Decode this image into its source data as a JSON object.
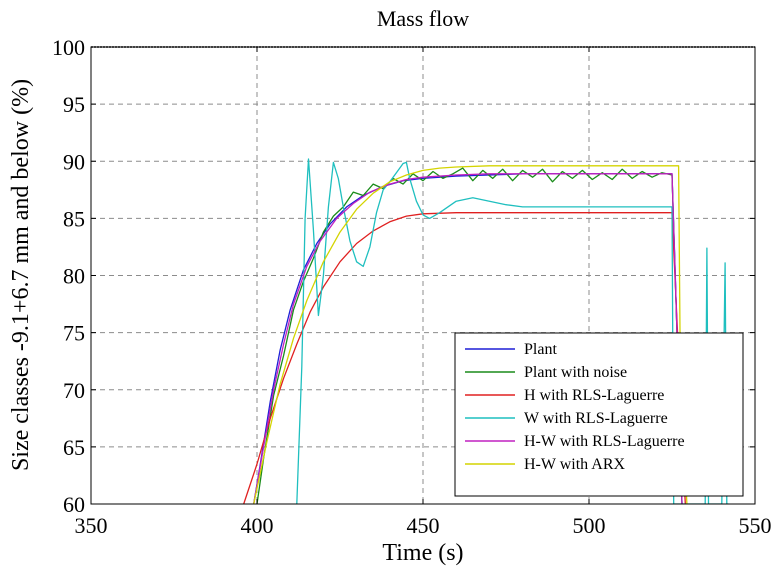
{
  "chart_data": {
    "type": "line",
    "title": "Mass flow",
    "xlabel": "Time (s)",
    "ylabel": "Size classes -9.1+6.7 mm and below (%)",
    "xlim": [
      350,
      550
    ],
    "ylim": [
      60,
      100
    ],
    "xticks": [
      350,
      400,
      450,
      500,
      550
    ],
    "yticks": [
      60,
      65,
      70,
      75,
      80,
      85,
      90,
      95,
      100
    ],
    "grid": true,
    "legend_position": "bottom-right",
    "series": [
      {
        "name": "Plant",
        "color": "#1f1fd6",
        "x": [
          399,
          401,
          404,
          407,
          410,
          414,
          418,
          422,
          427,
          432,
          438,
          444,
          450,
          460,
          470,
          480,
          490,
          500,
          510,
          520,
          525,
          526,
          528
        ],
        "y": [
          60,
          63.5,
          69,
          73.5,
          77,
          80.5,
          82.8,
          84.5,
          86.0,
          87.0,
          87.8,
          88.3,
          88.5,
          88.7,
          88.8,
          88.9,
          88.9,
          88.9,
          88.9,
          88.9,
          88.9,
          80,
          60
        ]
      },
      {
        "name": "Plant with noise",
        "color": "#1a8c1a",
        "x": [
          400,
          402,
          405,
          408,
          411,
          414,
          417,
          420,
          423,
          426,
          429,
          432,
          435,
          438,
          441,
          444,
          447,
          450,
          453,
          456,
          459,
          462,
          465,
          468,
          471,
          474,
          477,
          480,
          483,
          486,
          489,
          492,
          495,
          498,
          501,
          504,
          507,
          510,
          513,
          516,
          519,
          522,
          525,
          526.5,
          528
        ],
        "y": [
          60,
          64,
          69.5,
          73,
          77,
          79.5,
          81.5,
          83.8,
          85.2,
          86.0,
          87.3,
          87.0,
          88.0,
          87.6,
          88.5,
          88.0,
          88.9,
          88.3,
          89.1,
          88.5,
          88.9,
          89.4,
          88.3,
          89.2,
          88.5,
          89.3,
          88.3,
          89.2,
          88.6,
          89.3,
          88.2,
          89.1,
          88.5,
          89.2,
          88.4,
          89.0,
          88.4,
          89.3,
          88.5,
          89.1,
          88.6,
          89.0,
          88.8,
          75,
          60
        ]
      },
      {
        "name": "H with RLS-Laguerre",
        "color": "#e02020",
        "x": [
          396,
          400,
          404,
          408,
          412,
          416,
          420,
          425,
          430,
          435,
          440,
          445,
          450,
          460,
          470,
          480,
          490,
          500,
          510,
          520,
          525,
          527,
          529
        ],
        "y": [
          60,
          63.5,
          67.5,
          71,
          74,
          76.8,
          79,
          81.2,
          82.8,
          83.9,
          84.7,
          85.2,
          85.4,
          85.5,
          85.5,
          85.5,
          85.5,
          85.5,
          85.5,
          85.5,
          85.5,
          73,
          60
        ]
      },
      {
        "name": "W with RLS-Laguerre",
        "color": "#1fbfbf",
        "x": [
          412,
          413.5,
          414.5,
          415.5,
          417,
          418.5,
          420,
          421.5,
          423,
          424.5,
          426,
          428,
          430,
          432,
          434,
          436,
          438,
          440,
          442,
          444,
          445,
          446,
          448,
          450,
          452,
          455,
          460,
          465,
          470,
          475,
          480,
          490,
          500,
          510,
          520,
          524,
          525,
          525.5,
          526,
          535,
          535.5,
          536,
          540,
          541,
          541.5,
          542
        ],
        "y": [
          60,
          72,
          85,
          90.2,
          84,
          76.5,
          80,
          86,
          89.9,
          88.5,
          86,
          83,
          81.2,
          80.8,
          82.5,
          85.5,
          87.5,
          88.2,
          89.0,
          89.8,
          89.9,
          88.5,
          86.5,
          85.3,
          85.0,
          85.5,
          86.5,
          86.8,
          86.5,
          86.2,
          86.0,
          86.0,
          86.0,
          86.0,
          86.0,
          86.0,
          86.0,
          60,
          60,
          60,
          82.4,
          60,
          60,
          81.1,
          60,
          60
        ]
      },
      {
        "name": "H-W with RLS-Laguerre",
        "color": "#c020c0",
        "x": [
          399,
          402,
          405,
          408,
          411,
          415,
          419,
          424,
          429,
          434,
          440,
          445,
          450,
          460,
          470,
          480,
          490,
          500,
          510,
          520,
          525,
          526.5,
          528
        ],
        "y": [
          60,
          65,
          70,
          74,
          77.5,
          80.8,
          83.0,
          85.0,
          86.3,
          87.3,
          88.0,
          88.4,
          88.6,
          88.8,
          88.9,
          88.9,
          88.9,
          88.9,
          88.9,
          88.9,
          88.9,
          75,
          60
        ]
      },
      {
        "name": "H-W with ARX",
        "color": "#d4d400",
        "x": [
          399,
          403,
          407,
          411,
          415,
          420,
          425,
          430,
          435,
          440,
          445,
          450,
          455,
          460,
          470,
          480,
          490,
          500,
          510,
          520,
          527,
          527.5,
          529.5
        ],
        "y": [
          60,
          65.5,
          70.5,
          74.5,
          77.8,
          81.2,
          83.8,
          85.8,
          87.2,
          88.2,
          88.8,
          89.2,
          89.4,
          89.5,
          89.6,
          89.6,
          89.6,
          89.6,
          89.6,
          89.6,
          89.6,
          72,
          60
        ]
      }
    ]
  }
}
